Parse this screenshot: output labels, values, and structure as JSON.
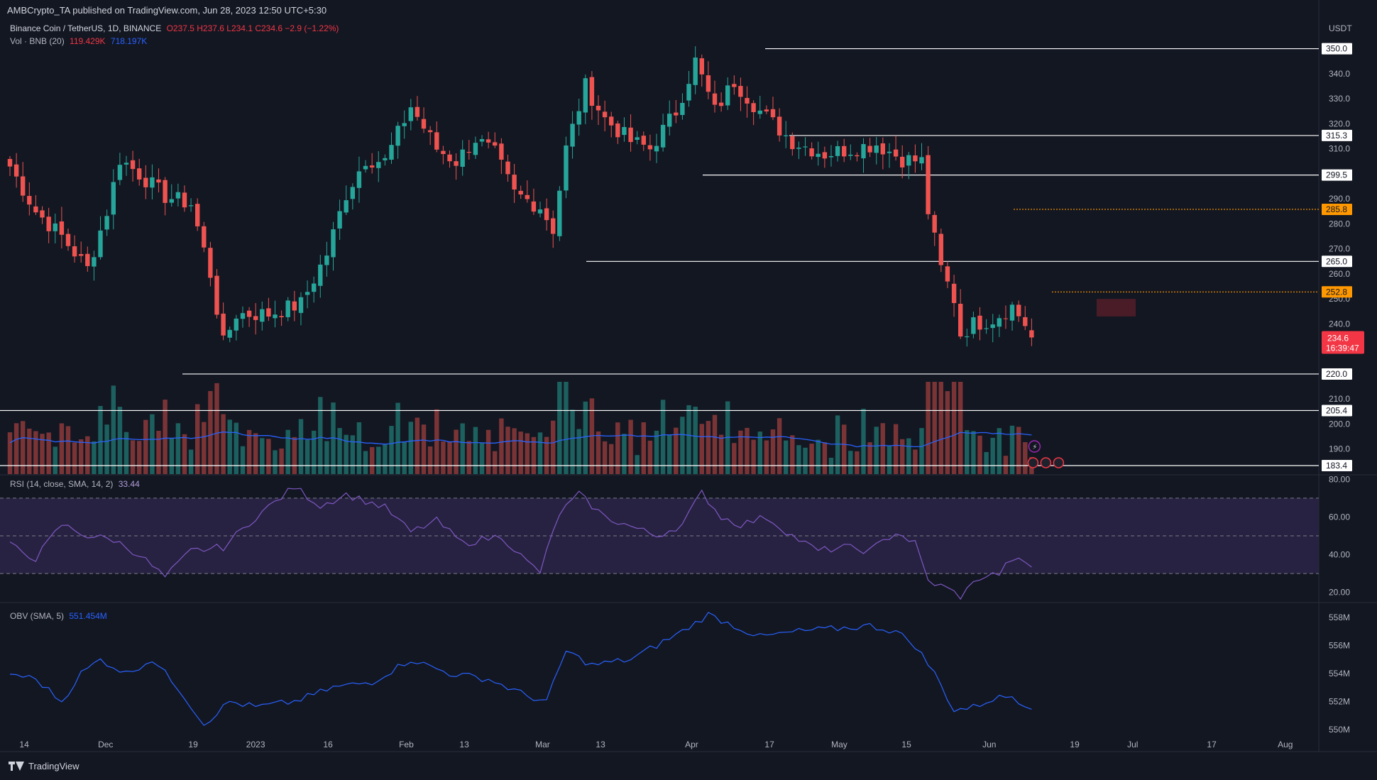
{
  "header": {
    "publisher_line": "AMBCrypto_TA published on TradingView.com, Jun 28, 2023 12:50 UTC+5:30"
  },
  "legend": {
    "symbol": "Binance Coin / TetherUS, 1D, BINANCE",
    "ohlc": "O237.5 H237.6 L234.1 C234.6 −2.9 (−1.22%)",
    "volume_label": "Vol · BNB (20)",
    "volume_value": "119.429K",
    "volume_ma": "718.197K",
    "rsi_label": "RSI (14, close, SMA, 14, 2)",
    "rsi_value": "33.44",
    "obv_label": "OBV (SMA, 5)",
    "obv_value": "551.454M"
  },
  "colors": {
    "background": "#131722",
    "up": "#26a69a",
    "down": "#ef5350",
    "volume_ma": "#2962ff",
    "rsi_line": "#7e57c2",
    "rsi_band": "#2a2445",
    "obv_line": "#2962ff",
    "highlight_label": "#ff9800",
    "last_price_label": "#f23645"
  },
  "currency_label": "USDT",
  "footer": {
    "brand": "TradingView"
  },
  "countdown": "16:39:47",
  "chart_data": {
    "type": "candlestick",
    "symbol": "BNBUSDT",
    "interval": "1D",
    "last_close": 234.6,
    "price_axis": {
      "ticks": [
        190,
        200,
        210,
        220,
        230,
        240,
        250,
        260,
        270,
        280,
        290,
        300,
        310,
        320,
        330,
        340,
        350
      ],
      "range": [
        180,
        353
      ]
    },
    "x_axis_ticks": [
      "14",
      "Dec",
      "19",
      "2023",
      "16",
      "Feb",
      "13",
      "Mar",
      "13",
      "Apr",
      "17",
      "May",
      "15",
      "Jun",
      "19",
      "Jul",
      "17",
      "Aug"
    ],
    "close_anchors": [
      {
        "i": 0,
        "v": 303
      },
      {
        "i": 4,
        "v": 285
      },
      {
        "i": 8,
        "v": 275
      },
      {
        "i": 12,
        "v": 262
      },
      {
        "i": 15,
        "v": 285
      },
      {
        "i": 17,
        "v": 306
      },
      {
        "i": 20,
        "v": 300
      },
      {
        "i": 24,
        "v": 291
      },
      {
        "i": 28,
        "v": 288
      },
      {
        "i": 31,
        "v": 260
      },
      {
        "i": 33,
        "v": 232
      },
      {
        "i": 35,
        "v": 244
      },
      {
        "i": 40,
        "v": 244
      },
      {
        "i": 45,
        "v": 248
      },
      {
        "i": 49,
        "v": 268
      },
      {
        "i": 52,
        "v": 292
      },
      {
        "i": 55,
        "v": 306
      },
      {
        "i": 58,
        "v": 305
      },
      {
        "i": 62,
        "v": 327
      },
      {
        "i": 66,
        "v": 310
      },
      {
        "i": 69,
        "v": 305
      },
      {
        "i": 72,
        "v": 314
      },
      {
        "i": 75,
        "v": 308
      },
      {
        "i": 78,
        "v": 292
      },
      {
        "i": 82,
        "v": 287
      },
      {
        "i": 84,
        "v": 278
      },
      {
        "i": 86,
        "v": 310
      },
      {
        "i": 89,
        "v": 335
      },
      {
        "i": 92,
        "v": 322
      },
      {
        "i": 96,
        "v": 313
      },
      {
        "i": 99,
        "v": 310
      },
      {
        "i": 103,
        "v": 325
      },
      {
        "i": 106,
        "v": 345
      },
      {
        "i": 109,
        "v": 325
      },
      {
        "i": 112,
        "v": 337
      },
      {
        "i": 116,
        "v": 325
      },
      {
        "i": 121,
        "v": 313
      },
      {
        "i": 126,
        "v": 308
      },
      {
        "i": 130,
        "v": 310
      },
      {
        "i": 134,
        "v": 312
      },
      {
        "i": 138,
        "v": 306
      },
      {
        "i": 141,
        "v": 305
      },
      {
        "i": 142,
        "v": 285
      },
      {
        "i": 144,
        "v": 262
      },
      {
        "i": 146,
        "v": 250
      },
      {
        "i": 147,
        "v": 236
      },
      {
        "i": 149,
        "v": 240
      },
      {
        "i": 152,
        "v": 242
      },
      {
        "i": 155,
        "v": 247
      },
      {
        "i": 157,
        "v": 240
      },
      {
        "i": 158,
        "v": 234.6
      }
    ],
    "volume": {
      "label": "Vol · BNB (20)",
      "last": "119.429K",
      "ma": "718.197K"
    },
    "horizontal_levels": [
      {
        "price": 350.0,
        "label": "350.0",
        "style": "solid",
        "color": "#ffffff"
      },
      {
        "price": 315.3,
        "label": "315.3",
        "style": "solid",
        "color": "#ffffff"
      },
      {
        "price": 299.5,
        "label": "299.5",
        "style": "solid",
        "color": "#ffffff"
      },
      {
        "price": 285.8,
        "label": "285.8",
        "style": "dotted",
        "color": "#ff9800"
      },
      {
        "price": 265.0,
        "label": "265.0",
        "style": "solid",
        "color": "#ffffff"
      },
      {
        "price": 252.8,
        "label": "252.8",
        "style": "dotted",
        "color": "#ff9800"
      },
      {
        "price": 220.0,
        "label": "220.0",
        "style": "solid",
        "color": "#ffffff"
      },
      {
        "price": 205.4,
        "label": "205.4",
        "style": "solid",
        "color": "#ffffff"
      },
      {
        "price": 183.4,
        "label": "183.4",
        "style": "solid",
        "color": "#ffffff"
      }
    ],
    "highlight_zone": {
      "from": 243,
      "to": 250
    },
    "rsi": {
      "label": "RSI (14, close, SMA, 14, 2)",
      "last": 33.44,
      "ticks": [
        20,
        40,
        60,
        80
      ],
      "range": [
        15,
        82
      ],
      "bands": [
        30,
        50,
        70
      ],
      "anchors": [
        {
          "i": 0,
          "v": 45
        },
        {
          "i": 4,
          "v": 38
        },
        {
          "i": 8,
          "v": 56
        },
        {
          "i": 12,
          "v": 50
        },
        {
          "i": 16,
          "v": 48
        },
        {
          "i": 20,
          "v": 40
        },
        {
          "i": 24,
          "v": 28
        },
        {
          "i": 28,
          "v": 42
        },
        {
          "i": 33,
          "v": 44
        },
        {
          "i": 38,
          "v": 60
        },
        {
          "i": 44,
          "v": 76
        },
        {
          "i": 48,
          "v": 66
        },
        {
          "i": 52,
          "v": 72
        },
        {
          "i": 58,
          "v": 65
        },
        {
          "i": 62,
          "v": 52
        },
        {
          "i": 66,
          "v": 58
        },
        {
          "i": 70,
          "v": 46
        },
        {
          "i": 76,
          "v": 50
        },
        {
          "i": 80,
          "v": 36
        },
        {
          "i": 82,
          "v": 31
        },
        {
          "i": 85,
          "v": 62
        },
        {
          "i": 88,
          "v": 72
        },
        {
          "i": 92,
          "v": 60
        },
        {
          "i": 96,
          "v": 55
        },
        {
          "i": 100,
          "v": 50
        },
        {
          "i": 104,
          "v": 56
        },
        {
          "i": 107,
          "v": 73
        },
        {
          "i": 110,
          "v": 60
        },
        {
          "i": 113,
          "v": 56
        },
        {
          "i": 117,
          "v": 60
        },
        {
          "i": 121,
          "v": 50
        },
        {
          "i": 125,
          "v": 42
        },
        {
          "i": 129,
          "v": 44
        },
        {
          "i": 133,
          "v": 42
        },
        {
          "i": 137,
          "v": 52
        },
        {
          "i": 140,
          "v": 46
        },
        {
          "i": 142,
          "v": 26
        },
        {
          "i": 145,
          "v": 22
        },
        {
          "i": 147,
          "v": 18
        },
        {
          "i": 150,
          "v": 28
        },
        {
          "i": 153,
          "v": 30
        },
        {
          "i": 155,
          "v": 38
        },
        {
          "i": 158,
          "v": 33.44
        }
      ]
    },
    "obv": {
      "label": "OBV (SMA, 5)",
      "last": "551.454M",
      "ticks": [
        "550M",
        "552M",
        "554M",
        "556M",
        "558M"
      ],
      "tick_values": [
        550,
        552,
        554,
        556,
        558
      ],
      "range": [
        549.8,
        559
      ],
      "anchors": [
        {
          "i": 0,
          "v": 554
        },
        {
          "i": 4,
          "v": 553.6
        },
        {
          "i": 8,
          "v": 552
        },
        {
          "i": 11,
          "v": 554
        },
        {
          "i": 14,
          "v": 555
        },
        {
          "i": 18,
          "v": 554
        },
        {
          "i": 22,
          "v": 555
        },
        {
          "i": 26,
          "v": 553
        },
        {
          "i": 30,
          "v": 550.4
        },
        {
          "i": 34,
          "v": 552
        },
        {
          "i": 38,
          "v": 551.6
        },
        {
          "i": 44,
          "v": 552
        },
        {
          "i": 50,
          "v": 553
        },
        {
          "i": 56,
          "v": 553.4
        },
        {
          "i": 62,
          "v": 555
        },
        {
          "i": 68,
          "v": 554
        },
        {
          "i": 74,
          "v": 553.6
        },
        {
          "i": 80,
          "v": 552.4
        },
        {
          "i": 83,
          "v": 552
        },
        {
          "i": 86,
          "v": 555.6
        },
        {
          "i": 90,
          "v": 554.6
        },
        {
          "i": 96,
          "v": 555
        },
        {
          "i": 100,
          "v": 556
        },
        {
          "i": 104,
          "v": 557
        },
        {
          "i": 108,
          "v": 558.2
        },
        {
          "i": 112,
          "v": 557.4
        },
        {
          "i": 116,
          "v": 556.6
        },
        {
          "i": 122,
          "v": 557
        },
        {
          "i": 128,
          "v": 557.2
        },
        {
          "i": 133,
          "v": 557.4
        },
        {
          "i": 137,
          "v": 557
        },
        {
          "i": 140,
          "v": 556
        },
        {
          "i": 143,
          "v": 554
        },
        {
          "i": 146,
          "v": 551.4
        },
        {
          "i": 149,
          "v": 551.6
        },
        {
          "i": 152,
          "v": 552.2
        },
        {
          "i": 155,
          "v": 552.4
        },
        {
          "i": 158,
          "v": 551.454
        }
      ]
    }
  }
}
